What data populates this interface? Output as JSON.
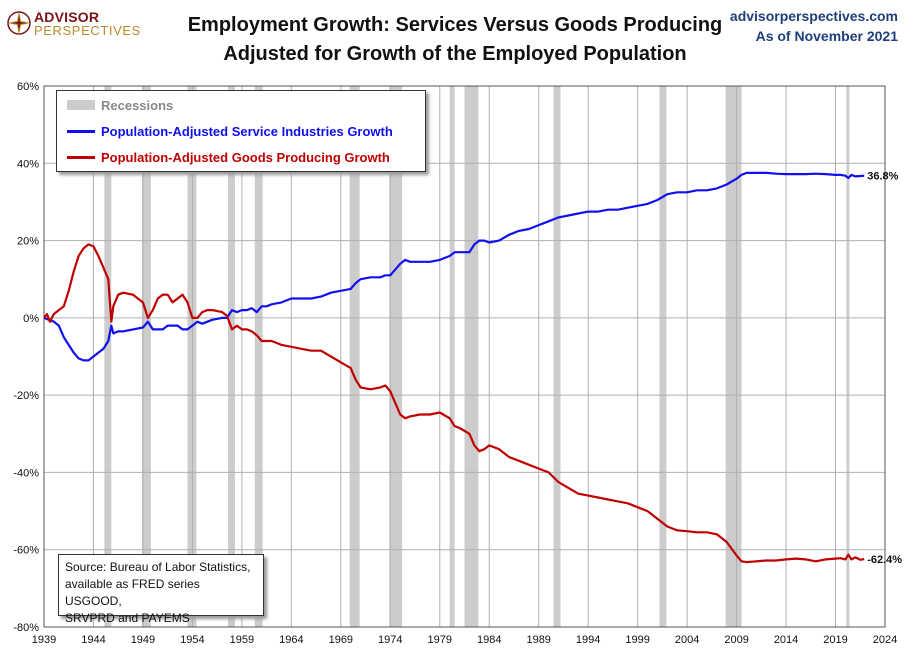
{
  "header": {
    "logo_line1": "ADVISOR",
    "logo_line2": "PERSPECTIVES",
    "title_line1": "Employment Growth: Services Versus Goods Producing",
    "title_line2": "Adjusted for Growth of the Employed Population",
    "site": "advisorperspectives.com",
    "as_of": "As of November 2021"
  },
  "legend": {
    "recessions": "Recessions",
    "service": "Population-Adjusted Service Industries Growth",
    "goods": "Population-Adjusted Goods Producing Growth"
  },
  "source_note": [
    "Source: Bureau of Labor Statistics,",
    "available as FRED series USGOOD,",
    "SRVPRD and PAYEMS"
  ],
  "colors": {
    "service": "#1010ee",
    "goods": "#c00000",
    "recession": "#cccccc",
    "grid": "#b0b0b0"
  },
  "chart_data": {
    "type": "line",
    "title": "Employment Growth: Services Versus Goods Producing",
    "subtitle": "Adjusted for Growth of the Employed Population",
    "xlim": [
      1939,
      2024
    ],
    "ylim": [
      -80,
      60
    ],
    "x_ticks": [
      "1939",
      "1944",
      "1949",
      "1954",
      "1959",
      "1964",
      "1969",
      "1974",
      "1979",
      "1984",
      "1989",
      "1994",
      "1999",
      "2004",
      "2009",
      "2014",
      "2019",
      "2024"
    ],
    "y_ticks": [
      "60%",
      "40%",
      "20%",
      "0%",
      "-20%",
      "-40%",
      "-60%",
      "-80%"
    ],
    "grid": true,
    "legend_position": "top-left",
    "recessions": [
      [
        1945.1,
        1945.8
      ],
      [
        1948.9,
        1949.8
      ],
      [
        1953.5,
        1954.4
      ],
      [
        1957.6,
        1958.3
      ],
      [
        1960.3,
        1961.1
      ],
      [
        1969.9,
        1970.9
      ],
      [
        1973.9,
        1975.2
      ],
      [
        1980.0,
        1980.5
      ],
      [
        1981.5,
        1982.9
      ],
      [
        1990.5,
        1991.2
      ],
      [
        2001.2,
        2001.9
      ],
      [
        2007.9,
        2009.5
      ],
      [
        2020.1,
        2020.4
      ]
    ],
    "series": [
      {
        "name": "Population-Adjusted Service Industries Growth",
        "end_label": "36.8%",
        "points": [
          [
            1939.0,
            0
          ],
          [
            1939.5,
            -0.5
          ],
          [
            1940.0,
            -1
          ],
          [
            1940.5,
            -2
          ],
          [
            1941.0,
            -5
          ],
          [
            1941.5,
            -7
          ],
          [
            1942.0,
            -9
          ],
          [
            1942.5,
            -10.5
          ],
          [
            1943.0,
            -11
          ],
          [
            1943.5,
            -11
          ],
          [
            1944.0,
            -10
          ],
          [
            1944.5,
            -9
          ],
          [
            1945.0,
            -8
          ],
          [
            1945.5,
            -6
          ],
          [
            1945.8,
            -2
          ],
          [
            1946.0,
            -4
          ],
          [
            1946.5,
            -3.5
          ],
          [
            1947.0,
            -3.5
          ],
          [
            1948.0,
            -3
          ],
          [
            1949.0,
            -2.5
          ],
          [
            1949.5,
            -1
          ],
          [
            1950.0,
            -3
          ],
          [
            1950.5,
            -3
          ],
          [
            1951.0,
            -3
          ],
          [
            1951.5,
            -2
          ],
          [
            1952.0,
            -2
          ],
          [
            1952.5,
            -2
          ],
          [
            1953.0,
            -3
          ],
          [
            1953.5,
            -3
          ],
          [
            1954.0,
            -2
          ],
          [
            1954.5,
            -1
          ],
          [
            1955.0,
            -1.5
          ],
          [
            1955.5,
            -1
          ],
          [
            1956.0,
            -0.5
          ],
          [
            1957.0,
            0
          ],
          [
            1957.5,
            0
          ],
          [
            1958.0,
            2
          ],
          [
            1958.5,
            1.5
          ],
          [
            1959.0,
            2
          ],
          [
            1959.5,
            2
          ],
          [
            1960.0,
            2.5
          ],
          [
            1960.5,
            1.5
          ],
          [
            1961.0,
            3
          ],
          [
            1961.5,
            3
          ],
          [
            1962.0,
            3.5
          ],
          [
            1963.0,
            4
          ],
          [
            1964.0,
            5
          ],
          [
            1965.0,
            5
          ],
          [
            1966.0,
            5
          ],
          [
            1967.0,
            5.5
          ],
          [
            1968.0,
            6.5
          ],
          [
            1969.0,
            7
          ],
          [
            1970.0,
            7.5
          ],
          [
            1970.5,
            9
          ],
          [
            1971.0,
            10
          ],
          [
            1972.0,
            10.5
          ],
          [
            1973.0,
            10.5
          ],
          [
            1973.5,
            11
          ],
          [
            1974.0,
            11
          ],
          [
            1975.0,
            14
          ],
          [
            1975.5,
            15
          ],
          [
            1976.0,
            14.5
          ],
          [
            1977.0,
            14.5
          ],
          [
            1978.0,
            14.5
          ],
          [
            1979.0,
            15
          ],
          [
            1980.0,
            16
          ],
          [
            1980.5,
            17
          ],
          [
            1981.0,
            17
          ],
          [
            1982.0,
            17
          ],
          [
            1982.5,
            19
          ],
          [
            1983.0,
            20
          ],
          [
            1983.5,
            20
          ],
          [
            1984.0,
            19.5
          ],
          [
            1985.0,
            20
          ],
          [
            1986.0,
            21.5
          ],
          [
            1987.0,
            22.5
          ],
          [
            1988.0,
            23
          ],
          [
            1989.0,
            24
          ],
          [
            1990.0,
            25
          ],
          [
            1991.0,
            26
          ],
          [
            1992.0,
            26.5
          ],
          [
            1993.0,
            27
          ],
          [
            1994.0,
            27.5
          ],
          [
            1995.0,
            27.5
          ],
          [
            1996.0,
            28
          ],
          [
            1997.0,
            28
          ],
          [
            1998.0,
            28.5
          ],
          [
            1999.0,
            29
          ],
          [
            2000.0,
            29.5
          ],
          [
            2001.0,
            30.5
          ],
          [
            2002.0,
            32
          ],
          [
            2003.0,
            32.5
          ],
          [
            2004.0,
            32.5
          ],
          [
            2005.0,
            33
          ],
          [
            2006.0,
            33
          ],
          [
            2007.0,
            33.5
          ],
          [
            2008.0,
            34.5
          ],
          [
            2009.0,
            36
          ],
          [
            2009.5,
            37
          ],
          [
            2010.0,
            37.5
          ],
          [
            2011.0,
            37.5
          ],
          [
            2012.0,
            37.5
          ],
          [
            2013.0,
            37.3
          ],
          [
            2014.0,
            37.2
          ],
          [
            2015.0,
            37.2
          ],
          [
            2016.0,
            37.2
          ],
          [
            2017.0,
            37.3
          ],
          [
            2018.0,
            37.2
          ],
          [
            2019.0,
            37
          ],
          [
            2019.5,
            37
          ],
          [
            2020.0,
            36.8
          ],
          [
            2020.3,
            36.2
          ],
          [
            2020.6,
            37
          ],
          [
            2021.0,
            36.6
          ],
          [
            2021.5,
            36.7
          ],
          [
            2021.9,
            36.8
          ]
        ]
      },
      {
        "name": "Population-Adjusted Goods Producing Growth",
        "end_label": "-62.4%",
        "points": [
          [
            1939.0,
            0
          ],
          [
            1939.3,
            1
          ],
          [
            1939.6,
            -1
          ],
          [
            1940.0,
            1
          ],
          [
            1940.5,
            2
          ],
          [
            1941.0,
            3
          ],
          [
            1941.5,
            7
          ],
          [
            1942.0,
            12
          ],
          [
            1942.5,
            16
          ],
          [
            1943.0,
            18
          ],
          [
            1943.5,
            19
          ],
          [
            1944.0,
            18.5
          ],
          [
            1944.5,
            16
          ],
          [
            1945.0,
            13
          ],
          [
            1945.5,
            10
          ],
          [
            1945.8,
            -1
          ],
          [
            1946.0,
            3
          ],
          [
            1946.5,
            6
          ],
          [
            1947.0,
            6.5
          ],
          [
            1948.0,
            6
          ],
          [
            1949.0,
            4
          ],
          [
            1949.5,
            0
          ],
          [
            1950.0,
            2
          ],
          [
            1950.5,
            5
          ],
          [
            1951.0,
            6
          ],
          [
            1951.5,
            6
          ],
          [
            1952.0,
            4
          ],
          [
            1952.5,
            5
          ],
          [
            1953.0,
            6
          ],
          [
            1953.5,
            4
          ],
          [
            1954.0,
            0
          ],
          [
            1954.5,
            0
          ],
          [
            1955.0,
            1.5
          ],
          [
            1955.5,
            2
          ],
          [
            1956.0,
            2
          ],
          [
            1957.0,
            1.5
          ],
          [
            1957.5,
            0.5
          ],
          [
            1958.0,
            -3
          ],
          [
            1958.5,
            -2
          ],
          [
            1959.0,
            -3
          ],
          [
            1959.5,
            -3
          ],
          [
            1960.0,
            -3.5
          ],
          [
            1960.5,
            -4.5
          ],
          [
            1961.0,
            -6
          ],
          [
            1962.0,
            -6
          ],
          [
            1963.0,
            -7
          ],
          [
            1964.0,
            -7.5
          ],
          [
            1965.0,
            -8
          ],
          [
            1966.0,
            -8.5
          ],
          [
            1967.0,
            -8.5
          ],
          [
            1968.0,
            -10
          ],
          [
            1969.0,
            -11.5
          ],
          [
            1970.0,
            -13
          ],
          [
            1970.5,
            -16
          ],
          [
            1971.0,
            -18
          ],
          [
            1972.0,
            -18.5
          ],
          [
            1973.0,
            -18
          ],
          [
            1973.5,
            -17.5
          ],
          [
            1974.0,
            -19
          ],
          [
            1975.0,
            -25
          ],
          [
            1975.5,
            -26
          ],
          [
            1976.0,
            -25.5
          ],
          [
            1977.0,
            -25
          ],
          [
            1978.0,
            -25
          ],
          [
            1979.0,
            -24.5
          ],
          [
            1980.0,
            -26
          ],
          [
            1980.5,
            -28
          ],
          [
            1981.0,
            -28.5
          ],
          [
            1982.0,
            -30
          ],
          [
            1982.5,
            -33
          ],
          [
            1983.0,
            -34.5
          ],
          [
            1983.5,
            -34
          ],
          [
            1984.0,
            -33
          ],
          [
            1985.0,
            -34
          ],
          [
            1986.0,
            -36
          ],
          [
            1987.0,
            -37
          ],
          [
            1988.0,
            -38
          ],
          [
            1989.0,
            -39
          ],
          [
            1990.0,
            -40
          ],
          [
            1991.0,
            -42.5
          ],
          [
            1992.0,
            -44
          ],
          [
            1993.0,
            -45.5
          ],
          [
            1994.0,
            -46
          ],
          [
            1995.0,
            -46.5
          ],
          [
            1996.0,
            -47
          ],
          [
            1997.0,
            -47.5
          ],
          [
            1998.0,
            -48
          ],
          [
            1999.0,
            -49
          ],
          [
            2000.0,
            -50
          ],
          [
            2001.0,
            -52
          ],
          [
            2002.0,
            -54
          ],
          [
            2003.0,
            -55
          ],
          [
            2004.0,
            -55.2
          ],
          [
            2005.0,
            -55.5
          ],
          [
            2006.0,
            -55.5
          ],
          [
            2007.0,
            -56
          ],
          [
            2008.0,
            -58
          ],
          [
            2009.0,
            -61.5
          ],
          [
            2009.5,
            -63
          ],
          [
            2010.0,
            -63.2
          ],
          [
            2011.0,
            -63
          ],
          [
            2012.0,
            -62.8
          ],
          [
            2013.0,
            -62.8
          ],
          [
            2014.0,
            -62.5
          ],
          [
            2015.0,
            -62.3
          ],
          [
            2016.0,
            -62.5
          ],
          [
            2017.0,
            -63
          ],
          [
            2018.0,
            -62.5
          ],
          [
            2019.0,
            -62.3
          ],
          [
            2019.5,
            -62.2
          ],
          [
            2020.0,
            -62.5
          ],
          [
            2020.3,
            -61.3
          ],
          [
            2020.6,
            -62.5
          ],
          [
            2021.0,
            -62
          ],
          [
            2021.5,
            -62.6
          ],
          [
            2021.9,
            -62.4
          ]
        ]
      }
    ]
  }
}
